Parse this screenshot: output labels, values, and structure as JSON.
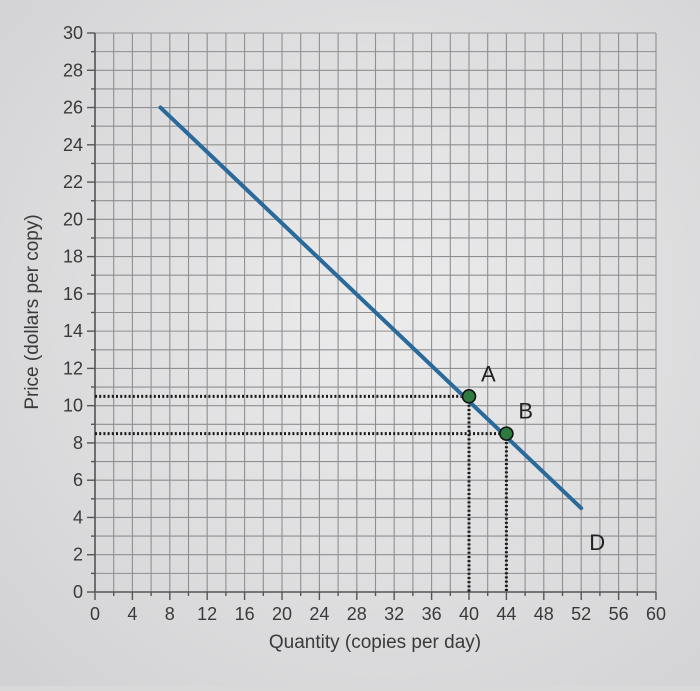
{
  "chart_data": {
    "type": "line",
    "title": "",
    "xlabel": "Quantity (copies per day)",
    "ylabel": "Price (dollars per copy)",
    "xlim": [
      0,
      60
    ],
    "ylim": [
      0,
      30
    ],
    "x_ticks": [
      0,
      4,
      8,
      12,
      16,
      20,
      24,
      28,
      32,
      36,
      40,
      44,
      48,
      52,
      56,
      60
    ],
    "y_ticks": [
      0,
      2,
      4,
      6,
      8,
      10,
      12,
      14,
      16,
      18,
      20,
      22,
      24,
      26,
      28,
      30
    ],
    "grid": true,
    "series": [
      {
        "name": "D",
        "color": "#2a6a9a",
        "points": [
          [
            7,
            26
          ],
          [
            52,
            4.5
          ]
        ]
      }
    ],
    "points": [
      {
        "label": "A",
        "x": 40,
        "y": 10.5,
        "color": "#2f7a3e"
      },
      {
        "label": "B",
        "x": 44,
        "y": 8.5,
        "color": "#2f7a3e"
      }
    ]
  }
}
